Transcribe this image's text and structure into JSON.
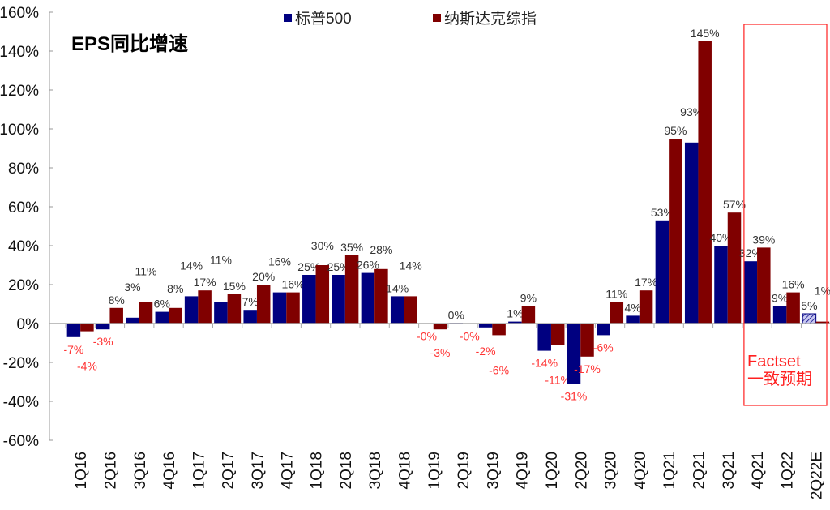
{
  "chart_data": {
    "type": "bar",
    "title": "EPS同比增速",
    "categories": [
      "1Q16",
      "2Q16",
      "3Q16",
      "4Q16",
      "1Q17",
      "2Q17",
      "3Q17",
      "4Q17",
      "1Q18",
      "2Q18",
      "3Q18",
      "4Q18",
      "1Q19",
      "2Q19",
      "3Q19",
      "4Q19",
      "1Q20",
      "2Q20",
      "3Q20",
      "4Q20",
      "1Q21",
      "2Q21",
      "3Q21",
      "4Q21",
      "1Q22",
      "2Q22E"
    ],
    "series": [
      {
        "name": "标普500",
        "color": "#000080",
        "values": [
          -7,
          -3,
          3,
          6,
          14,
          11,
          7,
          16,
          25,
          25,
          26,
          14,
          -0.3,
          0.3,
          -2,
          1,
          -14,
          -31,
          -6,
          4,
          53,
          93,
          40,
          32,
          9,
          5
        ],
        "labels": [
          "-7%",
          "-3%",
          "3%",
          "6%",
          "14%",
          "11%",
          "7%",
          "16%",
          "25%",
          "25%",
          "26%",
          "14%",
          "-0%",
          "0%",
          "-2%",
          "1%",
          "-14%",
          "-31%",
          "-6%",
          "4%",
          "53%",
          "93%",
          "40%",
          "32%",
          "9%",
          "5%"
        ]
      },
      {
        "name": "纳斯达克综指",
        "color": "#800000",
        "values": [
          -4,
          8,
          11,
          8,
          17,
          15,
          20,
          16,
          30,
          35,
          28,
          14,
          -3,
          -0.3,
          -6,
          9,
          -11,
          -17,
          11,
          17,
          95,
          145,
          57,
          39,
          16,
          1
        ],
        "labels": [
          "-4%",
          "8%",
          "11%",
          "8%",
          "17%",
          "15%",
          "20%",
          "16%",
          "30%",
          "35%",
          "28%",
          "14%",
          "-3%",
          "-0%",
          "-6%",
          "9%",
          "-11%",
          "-17%",
          "11%",
          "17%",
          "95%",
          "145%",
          "57%",
          "39%",
          "16%",
          "1%"
        ]
      }
    ],
    "ylim": [
      -60,
      160
    ],
    "yticks": [
      "-60%",
      "-40%",
      "-20%",
      "0%",
      "20%",
      "40%",
      "60%",
      "80%",
      "100%",
      "120%",
      "140%",
      "160%"
    ],
    "ytick_values": [
      -60,
      -40,
      -20,
      0,
      20,
      40,
      60,
      80,
      100,
      120,
      140,
      160
    ],
    "legend_position": "top",
    "grid": false,
    "positive_label_color": "#333333",
    "negative_label_color": "#ff3333",
    "forecast_category": "2Q22E",
    "annotation": {
      "line1": "Factset",
      "line2": "一致预期",
      "color": "#ff2020",
      "covers": [
        "4Q21",
        "1Q22",
        "2Q22E"
      ]
    }
  }
}
